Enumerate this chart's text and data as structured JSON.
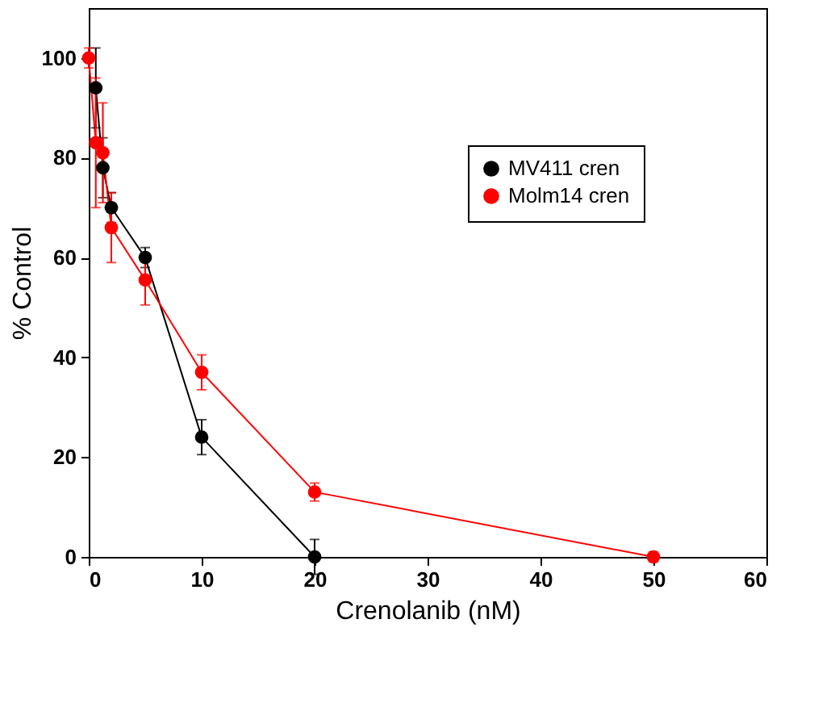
{
  "chart_data": {
    "type": "line",
    "xlabel": "Crenolanib (nM)",
    "ylabel": "% Control",
    "xlim": [
      0,
      60
    ],
    "xticks": [
      0,
      10,
      20,
      30,
      40,
      50,
      60
    ],
    "ylim": [
      0,
      110
    ],
    "yticks": [
      0,
      20,
      40,
      60,
      80,
      100
    ],
    "grid": false,
    "legend": "top right",
    "marker": "circle",
    "line_style": "solid",
    "series": [
      {
        "name": "MV411 cren",
        "color": "#000000",
        "x": [
          0.625,
          1.25,
          2,
          5,
          10,
          20
        ],
        "values": [
          94,
          78,
          70,
          60,
          24,
          0
        ],
        "errors": [
          8,
          6,
          3,
          2,
          3.5,
          3.5
        ]
      },
      {
        "name": "Molm14 cren",
        "color": "#ff0000",
        "x": [
          0,
          0.625,
          1.25,
          2,
          5,
          10,
          20,
          50
        ],
        "values": [
          100,
          83,
          81,
          66,
          55.5,
          37,
          13,
          0
        ],
        "errors": [
          2,
          13,
          10,
          7,
          5,
          3.5,
          1.8,
          1
        ]
      }
    ]
  }
}
